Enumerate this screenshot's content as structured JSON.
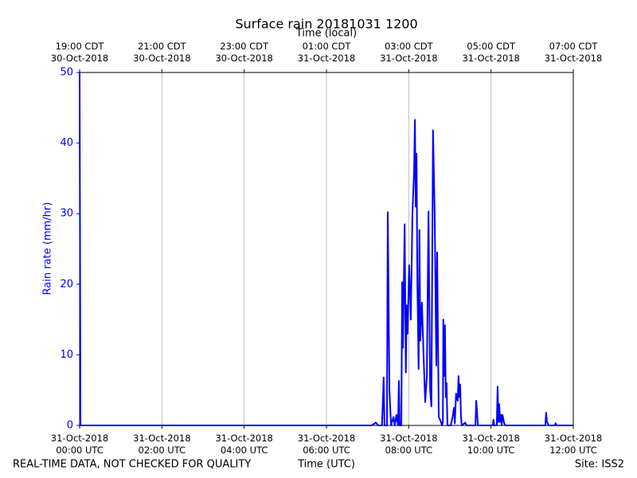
{
  "chart_data": {
    "type": "line",
    "title": "Surface rain 20181031 1200",
    "x_label": "Time (UTC)",
    "x2_label": "Time (local)",
    "y_label": "Rain rate (mm/hr)",
    "footer_left": "REAL-TIME DATA, NOT CHECKED FOR QUALITY",
    "footer_right": "Site: ISS2",
    "x": [
      0,
      0.02,
      7.1,
      7.2,
      7.26,
      7.35,
      7.39,
      7.41,
      7.47,
      7.49,
      7.53,
      7.57,
      7.63,
      7.66,
      7.7,
      7.74,
      7.76,
      7.78,
      7.82,
      7.84,
      7.86,
      7.9,
      7.93,
      7.95,
      7.97,
      8.01,
      8.05,
      8.09,
      8.13,
      8.15,
      8.17,
      8.19,
      8.21,
      8.24,
      8.26,
      8.28,
      8.32,
      8.36,
      8.4,
      8.44,
      8.48,
      8.52,
      8.55,
      8.59,
      8.63,
      8.67,
      8.69,
      8.73,
      8.77,
      8.81,
      8.83,
      8.84,
      8.86,
      8.88,
      8.9,
      8.92,
      8.94,
      9.02,
      9.06,
      9.1,
      9.12,
      9.15,
      9.19,
      9.21,
      9.23,
      9.25,
      9.27,
      9.29,
      9.37,
      9.41,
      9.62,
      9.64,
      9.66,
      9.68,
      10.04,
      10.06,
      10.08,
      10.14,
      10.16,
      10.18,
      10.2,
      10.22,
      10.24,
      10.26,
      10.28,
      10.32,
      10.35,
      11.32,
      11.34,
      11.36,
      11.4,
      11.55,
      11.57,
      11.59,
      12
    ],
    "series": [
      {
        "name": "Rain rate",
        "color": "#0000ff",
        "values": [
          50,
          0,
          0,
          0.4,
          0,
          0,
          6.8,
          0,
          0,
          30.2,
          5,
          0,
          1.2,
          0,
          1.5,
          0,
          6.3,
          0,
          0,
          20.3,
          11,
          28.5,
          7.5,
          17,
          13,
          22.7,
          15,
          30,
          36,
          43.3,
          31,
          38.5,
          20,
          8,
          27.7,
          12,
          17.4,
          10,
          3.3,
          7,
          30.3,
          5,
          2.7,
          41.8,
          30.2,
          8.5,
          24.5,
          1.2,
          0.7,
          0,
          0.5,
          15,
          7,
          14.2,
          4,
          6,
          0,
          0,
          1,
          2.5,
          0.3,
          4.5,
          3.5,
          7,
          4,
          5.8,
          1.2,
          0,
          0.4,
          0,
          0,
          3.5,
          2,
          0,
          0,
          0.8,
          0,
          0,
          5.5,
          0.5,
          3,
          0.5,
          1.5,
          0,
          1.5,
          0.3,
          0,
          0,
          1.8,
          0.5,
          0,
          0,
          0.3,
          0,
          0
        ]
      }
    ],
    "xlim": [
      0,
      12
    ],
    "xticks": [
      {
        "value": 0,
        "label": "31-Oct-2018\n00:00 UTC"
      },
      {
        "value": 2,
        "label": "31-Oct-2018\n02:00 UTC"
      },
      {
        "value": 4,
        "label": "31-Oct-2018\n04:00 UTC"
      },
      {
        "value": 6,
        "label": "31-Oct-2018\n06:00 UTC"
      },
      {
        "value": 8,
        "label": "31-Oct-2018\n08:00 UTC"
      },
      {
        "value": 10,
        "label": "31-Oct-2018\n10:00 UTC"
      },
      {
        "value": 12,
        "label": "31-Oct-2018\n12:00 UTC"
      }
    ],
    "x2ticks": [
      {
        "value": 0,
        "label": "19:00 CDT\n30-Oct-2018"
      },
      {
        "value": 2,
        "label": "21:00 CDT\n30-Oct-2018"
      },
      {
        "value": 4,
        "label": "23:00 CDT\n30-Oct-2018"
      },
      {
        "value": 6,
        "label": "01:00 CDT\n31-Oct-2018"
      },
      {
        "value": 8,
        "label": "03:00 CDT\n31-Oct-2018"
      },
      {
        "value": 10,
        "label": "05:00 CDT\n31-Oct-2018"
      },
      {
        "value": 12,
        "label": "07:00 CDT\n31-Oct-2018"
      }
    ],
    "ylim": [
      0,
      50
    ],
    "yticks": [
      0,
      10,
      20,
      30,
      40,
      50
    ],
    "y_color": "#0000ff",
    "grid": true
  }
}
